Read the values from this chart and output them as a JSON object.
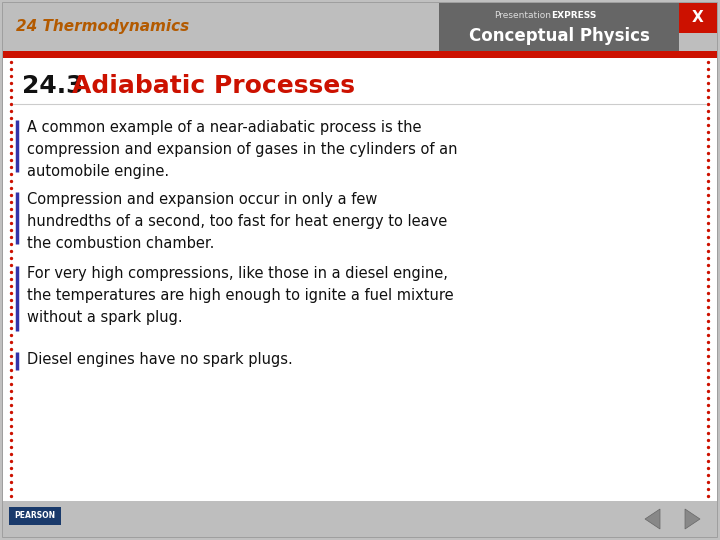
{
  "header_bg": "#bebebe",
  "header_text": "24 Thermodynamics",
  "header_text_color": "#b35a00",
  "header_right_bg": "#666666",
  "red_bar_color": "#cc1100",
  "title_number": "24.3 ",
  "title_topic": "Adiabatic Processes",
  "title_color_number": "#111111",
  "title_color_topic": "#cc1100",
  "body_bg": "#ffffff",
  "footer_bg": "#bebebe",
  "border_dots_color": "#cc1100",
  "bullet_line_color": "#3333aa",
  "bullets": [
    "A common example of a near-adiabatic process is the\ncompression and expansion of gases in the cylinders of an\nautomobile engine.",
    "Compression and expansion occur in only a few\nhundredths of a second, too fast for heat energy to leave\nthe combustion chamber.",
    "For very high compressions, like those in a diesel engine,\nthe temperatures are high enough to ignite a fuel mixture\nwithout a spark plug.",
    "Diesel engines have no spark plugs."
  ],
  "main_bg": "#c0c0c0",
  "x_button_color": "#cc1100",
  "slide_bg": "#ffffff",
  "presentation_text": "Presentation",
  "express_text": "EXPRESS",
  "conceptual_text": "Conceptual Physics",
  "pearson_text": "PEARSON"
}
